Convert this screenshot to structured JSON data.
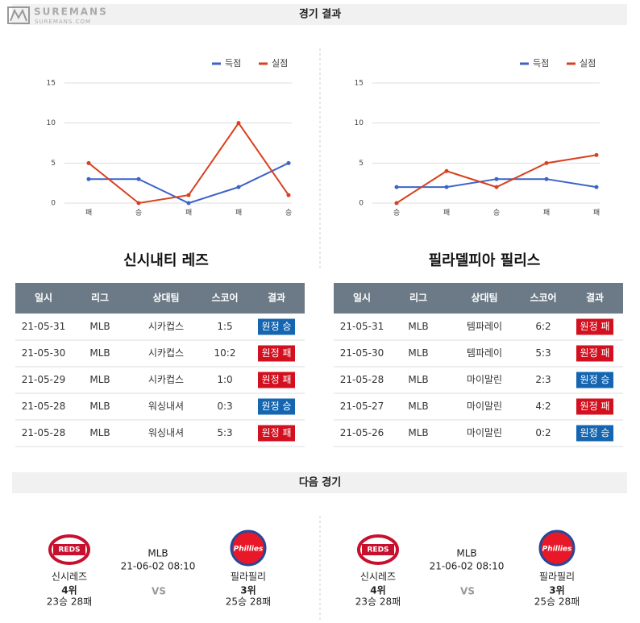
{
  "watermark": {
    "brand": "SUREMANS",
    "site": "SUREMANS.COM"
  },
  "results_title": "경기 결과",
  "chart_data": [
    {
      "type": "line",
      "categories": [
        "패",
        "승",
        "패",
        "패",
        "승"
      ],
      "series": [
        {
          "name": "득점",
          "color": "#3d63c9",
          "values": [
            3,
            3,
            0,
            2,
            5
          ]
        },
        {
          "name": "실점",
          "color": "#d8411f",
          "values": [
            5,
            0,
            1,
            10,
            1
          ]
        }
      ],
      "ylim": [
        0,
        15
      ],
      "yticks": [
        0,
        5,
        10,
        15
      ],
      "grid": true,
      "legend": "top-right"
    },
    {
      "type": "line",
      "categories": [
        "승",
        "패",
        "승",
        "패",
        "패"
      ],
      "series": [
        {
          "name": "득점",
          "color": "#3d63c9",
          "values": [
            2,
            2,
            3,
            3,
            2
          ]
        },
        {
          "name": "실점",
          "color": "#d8411f",
          "values": [
            0,
            4,
            2,
            5,
            6
          ]
        }
      ],
      "ylim": [
        0,
        15
      ],
      "yticks": [
        0,
        5,
        10,
        15
      ],
      "grid": true,
      "legend": "top-right"
    }
  ],
  "result_colors": {
    "승": "#1565b0",
    "패": "#d3101f"
  },
  "teams": [
    {
      "name": "신시내티 레즈",
      "columns": [
        "일시",
        "리그",
        "상대팀",
        "스코어",
        "결과"
      ],
      "rows": [
        [
          "21-05-31",
          "MLB",
          "시카컵스",
          "1:5",
          "원정 승"
        ],
        [
          "21-05-30",
          "MLB",
          "시카컵스",
          "10:2",
          "원정 패"
        ],
        [
          "21-05-29",
          "MLB",
          "시카컵스",
          "1:0",
          "원정 패"
        ],
        [
          "21-05-28",
          "MLB",
          "워싱내셔",
          "0:3",
          "원정 승"
        ],
        [
          "21-05-28",
          "MLB",
          "워싱내셔",
          "5:3",
          "원정 패"
        ]
      ]
    },
    {
      "name": "필라델피아 필리스",
      "columns": [
        "일시",
        "리그",
        "상대팀",
        "스코어",
        "결과"
      ],
      "rows": [
        [
          "21-05-31",
          "MLB",
          "템파레이",
          "6:2",
          "원정 패"
        ],
        [
          "21-05-30",
          "MLB",
          "템파레이",
          "5:3",
          "원정 패"
        ],
        [
          "21-05-28",
          "MLB",
          "마이말린",
          "2:3",
          "원정 승"
        ],
        [
          "21-05-27",
          "MLB",
          "마이말린",
          "4:2",
          "원정 패"
        ],
        [
          "21-05-26",
          "MLB",
          "마이말린",
          "0:2",
          "원정 승"
        ]
      ]
    }
  ],
  "next_title": "다음 경기",
  "next_games": [
    {
      "home": {
        "logo": "REDS",
        "name": "신시레즈",
        "rank": "4위",
        "record": "23승 28패"
      },
      "league": "MLB",
      "datetime": "21-06-02 08:10",
      "vs": "VS",
      "away": {
        "logo": "Phillies",
        "name": "필라필리",
        "rank": "3위",
        "record": "25승 28패"
      }
    },
    {
      "home": {
        "logo": "REDS",
        "name": "신시레즈",
        "rank": "4위",
        "record": "23승 28패"
      },
      "league": "MLB",
      "datetime": "21-06-02 08:10",
      "vs": "VS",
      "away": {
        "logo": "Phillies",
        "name": "필라필리",
        "rank": "3위",
        "record": "25승 28패"
      }
    }
  ]
}
